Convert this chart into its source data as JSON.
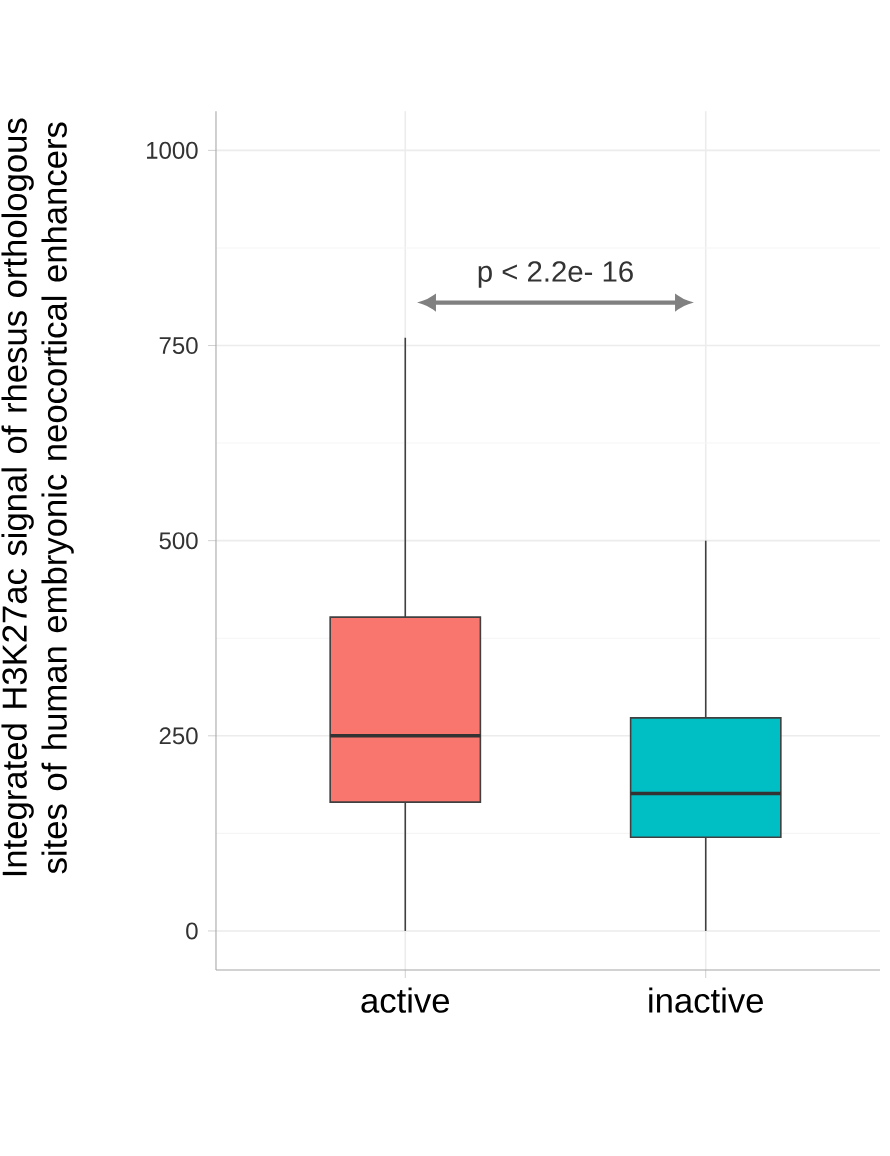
{
  "chart_data": {
    "type": "box",
    "ylabel": "Integrated  H3K27ac signal of rhesus orthologous sites of human embryonic neocortical enhancers",
    "categories": [
      "active",
      "inactive"
    ],
    "colors": [
      "#f8766d",
      "#00bfc4"
    ],
    "boxes": [
      {
        "low": 0,
        "q1": 165,
        "median": 250,
        "q3": 402,
        "high": 760
      },
      {
        "low": 0,
        "q1": 120,
        "median": 176,
        "q3": 273,
        "high": 500
      }
    ],
    "ylim": [
      -50,
      1050
    ],
    "yticks": [
      0,
      250,
      500,
      750,
      1000
    ],
    "grid": true,
    "annotations": [
      "p < 2.2e- 16"
    ]
  }
}
